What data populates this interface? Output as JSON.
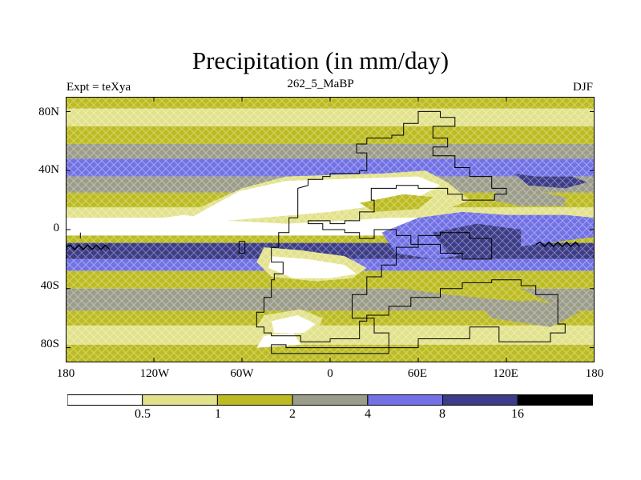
{
  "title": "Precipitation (in mm/day)",
  "subtitle_left": "Expt = teXya",
  "subtitle_center": "262_5_MaBP",
  "subtitle_right": "DJF",
  "y_ticks": [
    "80N",
    "40N",
    "0",
    "40S",
    "80S"
  ],
  "x_ticks": [
    "180",
    "120W",
    "60W",
    "0",
    "60E",
    "120E",
    "180"
  ],
  "colorbar": {
    "labels": [
      "0.5",
      "1",
      "2",
      "4",
      "8",
      "16"
    ],
    "colors": [
      "#ffffff",
      "#e2e28c",
      "#bcbc22",
      "#9c9c8a",
      "#7272e6",
      "#3c3c88",
      "#000000"
    ]
  },
  "map": {
    "lon_range": [
      -180,
      180
    ],
    "lat_range": [
      -90,
      90
    ],
    "colors": {
      "dry": "#ffffff",
      "low": "#e2e28c",
      "mid": "#bcbc22",
      "grey": "#9c9c8a",
      "high": "#7272e6",
      "vhigh": "#3c3c88"
    }
  }
}
